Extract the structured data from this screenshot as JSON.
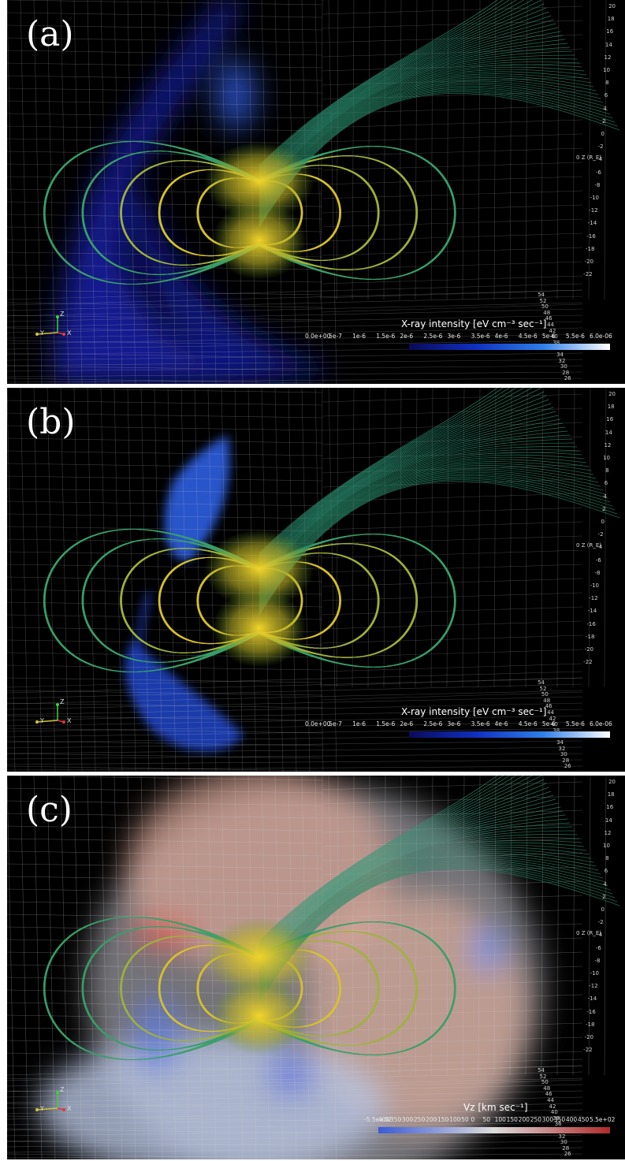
{
  "panels": [
    {
      "label": "(a)",
      "legend": {
        "title": "X-ray intensity [eV cm⁻³ sec⁻¹]",
        "ticks": [
          "0.0e+00",
          "5e-7",
          "1e-6",
          "1.5e-6",
          "2e-6",
          "2.5e-6",
          "3e-6",
          "3.5e-6",
          "4e-6",
          "4.5e-6",
          "5e-6",
          "5.5e-6",
          "6.0e-06"
        ],
        "colors": [
          "#0a0a5a",
          "#1030c0",
          "#2f7fe8",
          "#ffffff"
        ]
      },
      "mode": "xray-a"
    },
    {
      "label": "(b)",
      "legend": {
        "title": "X-ray intensity [eV cm⁻³ sec⁻¹]",
        "ticks": [
          "0.0e+00",
          "5e-7",
          "1e-6",
          "1.5e-6",
          "2e-6",
          "2.5e-6",
          "3e-6",
          "3.5e-6",
          "4e-6",
          "4.5e-6",
          "5e-6",
          "5.5e-6",
          "6.0e-06"
        ],
        "colors": [
          "#0a0a5a",
          "#1030c0",
          "#2f7fe8",
          "#ffffff"
        ]
      },
      "mode": "xray-b"
    },
    {
      "label": "(c)",
      "legend": {
        "title": "Vz  [km sec⁻¹]",
        "ticks": [
          "-5.5e+02",
          "-400",
          "-350",
          "-300",
          "-250",
          "-200",
          "-150",
          "-100",
          "-50",
          "0",
          "50",
          "100",
          "150",
          "200",
          "250",
          "300",
          "350",
          "400",
          "450",
          "5.5e+02"
        ],
        "colors": [
          "#3a5bd6",
          "#dcdcdc",
          "#b02a2a"
        ]
      },
      "mode": "velocity"
    }
  ],
  "z_axis": {
    "name": "0 Z (R_E)",
    "ticks": [
      "20",
      "18",
      "16",
      "14",
      "12",
      "10",
      "8",
      "6",
      "4",
      "2",
      "0",
      "-2",
      "-4",
      "-6",
      "-8",
      "-10",
      "-12",
      "-14",
      "-16",
      "-18",
      "-20",
      "-22"
    ],
    "depth_ticks": [
      "54",
      "52",
      "50",
      "48",
      "46",
      "44",
      "42",
      "40",
      "38",
      "36",
      "34",
      "32",
      "30",
      "28",
      "26"
    ]
  },
  "triad": {
    "z": "Z",
    "y": "Y",
    "x": "X"
  }
}
